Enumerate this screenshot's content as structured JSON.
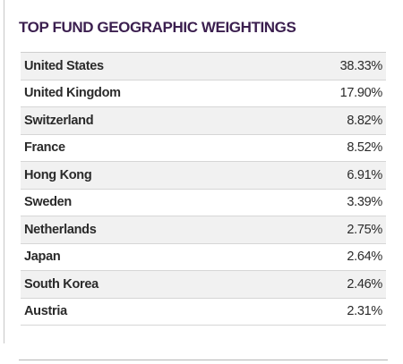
{
  "title": "TOP FUND GEOGRAPHIC WEIGHTINGS",
  "rows": [
    {
      "country": "United States",
      "value": "38.33%"
    },
    {
      "country": "United Kingdom",
      "value": "17.90%"
    },
    {
      "country": "Switzerland",
      "value": "8.82%"
    },
    {
      "country": "France",
      "value": "8.52%"
    },
    {
      "country": "Hong Kong",
      "value": "6.91%"
    },
    {
      "country": "Sweden",
      "value": "3.39%"
    },
    {
      "country": "Netherlands",
      "value": "2.75%"
    },
    {
      "country": "Japan",
      "value": "2.64%"
    },
    {
      "country": "South Korea",
      "value": "2.46%"
    },
    {
      "country": "Austria",
      "value": "2.31%"
    }
  ],
  "colors": {
    "title": "#3b1f4f",
    "row_shade": "#f1f1f1",
    "text": "#2a2a2a"
  }
}
